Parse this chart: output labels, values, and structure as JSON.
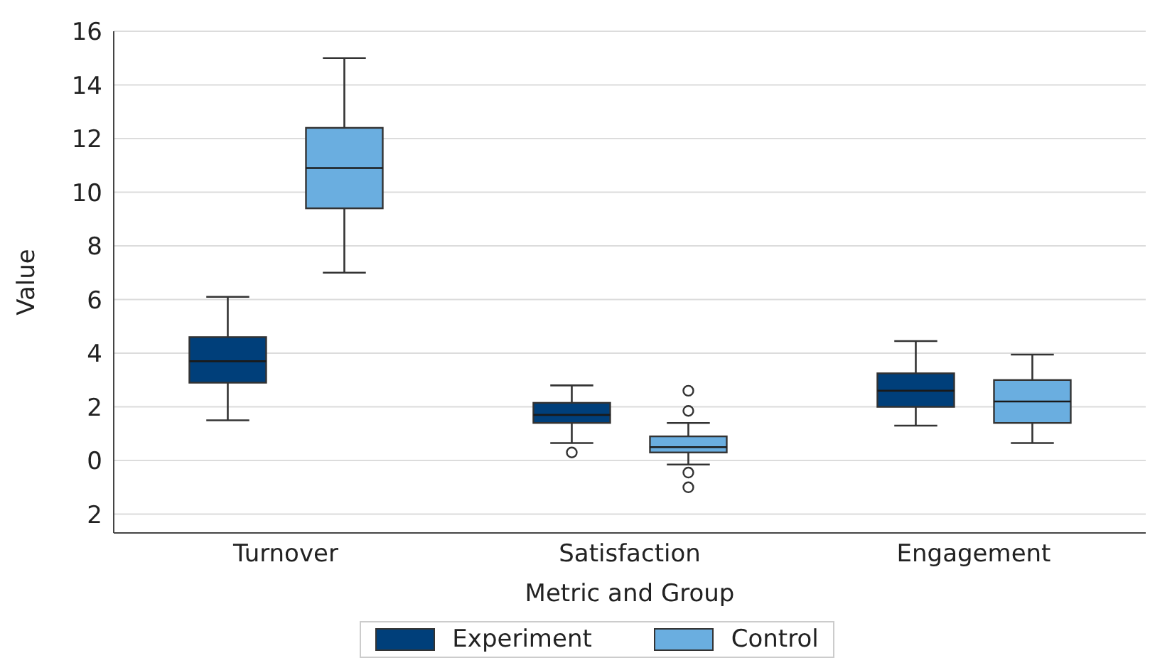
{
  "chart_data": {
    "type": "box",
    "xlabel": "Metric and Group",
    "ylabel": "Value",
    "categories": [
      "Turnover",
      "Satisfaction",
      "Engagement"
    ],
    "series": [
      {
        "name": "Experiment",
        "color": "#003f7a",
        "boxes": [
          {
            "low": 1.5,
            "q1": 2.9,
            "median": 3.7,
            "q3": 4.6,
            "high": 6.1
          },
          {
            "low": 0.65,
            "q1": 1.4,
            "median": 1.7,
            "q3": 2.15,
            "high": 2.8,
            "outliers": [
              0.3
            ]
          },
          {
            "low": 1.3,
            "q1": 2.0,
            "median": 2.6,
            "q3": 3.25,
            "high": 4.45
          }
        ]
      },
      {
        "name": "Control",
        "color": "#6aaee0",
        "boxes": [
          {
            "low": 7.0,
            "q1": 9.4,
            "median": 10.9,
            "q3": 12.4,
            "high": 15.0
          },
          {
            "low": -0.15,
            "q1": 0.3,
            "median": 0.5,
            "q3": 0.9,
            "high": 1.4,
            "outliers": [
              2.6,
              1.85,
              -0.45,
              -1.0
            ]
          },
          {
            "low": 0.65,
            "q1": 1.4,
            "median": 2.2,
            "q3": 3.0,
            "high": 3.95
          }
        ]
      }
    ],
    "ylim": [
      -2.7,
      16
    ],
    "yticks": [
      {
        "value": -2,
        "label": "2"
      },
      0,
      2,
      4,
      6,
      8,
      10,
      12,
      14,
      16
    ],
    "grid": "y",
    "legend": "bottom"
  }
}
